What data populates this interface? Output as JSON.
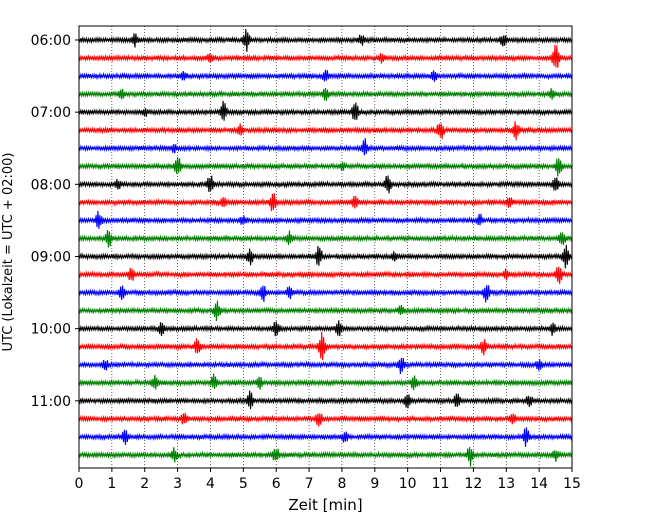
{
  "chart_data": {
    "type": "line",
    "title": "",
    "xlabel": "Zeit  [min]",
    "ylabel": "UTC (Lokalzeit = UTC + 02:00)",
    "xlim": [
      0,
      15
    ],
    "x_ticks": [
      "0",
      "1",
      "2",
      "3",
      "4",
      "5",
      "6",
      "7",
      "8",
      "9",
      "10",
      "11",
      "12",
      "13",
      "14",
      "15"
    ],
    "y_ticks": [
      "06:00",
      "07:00",
      "08:00",
      "09:00",
      "10:00",
      "11:00"
    ],
    "vertical_grid": true,
    "grid_style": "dotted",
    "color_cycle": [
      "#000000",
      "#ff0000",
      "#0000ff",
      "#008000"
    ],
    "trace_interval_min": 15,
    "traces": [
      {
        "start": "06:00",
        "color": "#000000",
        "events": [
          [
            5.1,
            0.6
          ],
          [
            1.7,
            0.3
          ],
          [
            12.9,
            0.3
          ],
          [
            8.6,
            0.25
          ]
        ]
      },
      {
        "start": "06:15",
        "color": "#ff0000",
        "events": [
          [
            14.5,
            0.8
          ],
          [
            4.0,
            0.25
          ],
          [
            9.2,
            0.2
          ]
        ]
      },
      {
        "start": "06:30",
        "color": "#0000ff",
        "events": [
          [
            10.8,
            0.35
          ],
          [
            7.5,
            0.3
          ],
          [
            3.2,
            0.2
          ]
        ]
      },
      {
        "start": "06:45",
        "color": "#008000",
        "events": [
          [
            7.5,
            0.3
          ],
          [
            1.3,
            0.2
          ],
          [
            14.4,
            0.3
          ]
        ]
      },
      {
        "start": "07:00",
        "color": "#000000",
        "events": [
          [
            4.4,
            0.6
          ],
          [
            8.4,
            0.55
          ],
          [
            2.0,
            0.2
          ]
        ]
      },
      {
        "start": "07:15",
        "color": "#ff0000",
        "events": [
          [
            11.0,
            0.55
          ],
          [
            13.3,
            0.45
          ],
          [
            4.9,
            0.3
          ]
        ]
      },
      {
        "start": "07:30",
        "color": "#0000ff",
        "events": [
          [
            8.7,
            0.45
          ],
          [
            2.9,
            0.2
          ]
        ]
      },
      {
        "start": "07:45",
        "color": "#008000",
        "events": [
          [
            3.0,
            0.55
          ],
          [
            14.6,
            0.55
          ],
          [
            8.0,
            0.2
          ]
        ]
      },
      {
        "start": "08:00",
        "color": "#000000",
        "events": [
          [
            4.0,
            0.5
          ],
          [
            9.4,
            0.5
          ],
          [
            14.5,
            0.35
          ],
          [
            1.2,
            0.25
          ]
        ]
      },
      {
        "start": "08:15",
        "color": "#ff0000",
        "events": [
          [
            5.9,
            0.55
          ],
          [
            8.4,
            0.4
          ],
          [
            4.4,
            0.25
          ],
          [
            13.1,
            0.25
          ]
        ]
      },
      {
        "start": "08:30",
        "color": "#0000ff",
        "events": [
          [
            0.6,
            0.45
          ],
          [
            12.2,
            0.3
          ],
          [
            5.0,
            0.2
          ]
        ]
      },
      {
        "start": "08:45",
        "color": "#008000",
        "events": [
          [
            0.9,
            0.5
          ],
          [
            14.7,
            0.4
          ],
          [
            6.4,
            0.35
          ]
        ]
      },
      {
        "start": "09:00",
        "color": "#000000",
        "events": [
          [
            5.2,
            0.45
          ],
          [
            7.3,
            0.55
          ],
          [
            14.8,
            0.6
          ],
          [
            9.6,
            0.25
          ]
        ]
      },
      {
        "start": "09:15",
        "color": "#ff0000",
        "events": [
          [
            14.6,
            0.55
          ],
          [
            1.6,
            0.35
          ],
          [
            13.0,
            0.25
          ]
        ]
      },
      {
        "start": "09:30",
        "color": "#0000ff",
        "events": [
          [
            5.6,
            0.45
          ],
          [
            12.4,
            0.5
          ],
          [
            1.3,
            0.4
          ],
          [
            6.4,
            0.3
          ]
        ]
      },
      {
        "start": "09:45",
        "color": "#008000",
        "events": [
          [
            4.2,
            0.5
          ],
          [
            9.8,
            0.25
          ]
        ]
      },
      {
        "start": "10:00",
        "color": "#000000",
        "events": [
          [
            6.0,
            0.5
          ],
          [
            7.9,
            0.5
          ],
          [
            2.5,
            0.3
          ],
          [
            14.4,
            0.3
          ]
        ]
      },
      {
        "start": "10:15",
        "color": "#ff0000",
        "events": [
          [
            7.4,
            0.9
          ],
          [
            3.6,
            0.45
          ],
          [
            12.3,
            0.4
          ]
        ]
      },
      {
        "start": "10:30",
        "color": "#0000ff",
        "events": [
          [
            9.8,
            0.45
          ],
          [
            0.8,
            0.25
          ],
          [
            14.0,
            0.25
          ]
        ]
      },
      {
        "start": "10:45",
        "color": "#008000",
        "events": [
          [
            2.3,
            0.35
          ],
          [
            4.1,
            0.4
          ],
          [
            5.5,
            0.3
          ],
          [
            10.2,
            0.4
          ]
        ]
      },
      {
        "start": "11:00",
        "color": "#000000",
        "events": [
          [
            5.2,
            0.5
          ],
          [
            10.0,
            0.45
          ],
          [
            11.5,
            0.4
          ],
          [
            13.7,
            0.35
          ]
        ]
      },
      {
        "start": "11:15",
        "color": "#ff0000",
        "events": [
          [
            7.3,
            0.4
          ],
          [
            3.2,
            0.3
          ],
          [
            13.2,
            0.25
          ]
        ]
      },
      {
        "start": "11:30",
        "color": "#0000ff",
        "events": [
          [
            1.4,
            0.35
          ],
          [
            8.1,
            0.3
          ],
          [
            13.6,
            0.5
          ]
        ]
      },
      {
        "start": "11:45",
        "color": "#008000",
        "events": [
          [
            2.9,
            0.35
          ],
          [
            6.0,
            0.4
          ],
          [
            11.9,
            0.55
          ],
          [
            14.5,
            0.3
          ]
        ]
      }
    ]
  }
}
